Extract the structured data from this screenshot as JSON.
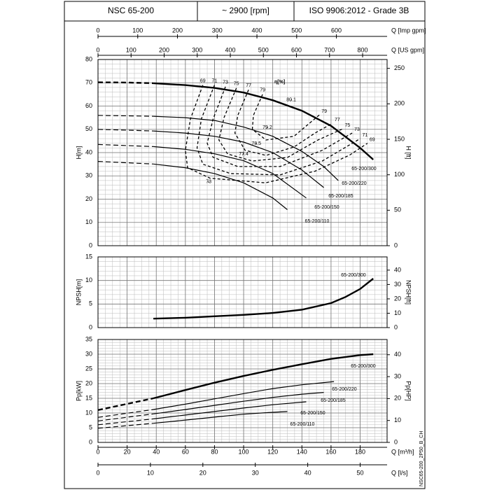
{
  "header": {
    "model": "NSC 65-200",
    "speed": "~ 2900 [rpm]",
    "standard": "ISO 9906:2012 - Grade 3B"
  },
  "footer_code": "NSC65-200_2P50_B_CH",
  "x_axes": {
    "imp_gpm": {
      "label": "Q [Imp gpm]",
      "lim": [
        0,
        727.6
      ],
      "ticks": [
        0,
        100,
        200,
        300,
        400,
        500,
        600
      ]
    },
    "us_gpm": {
      "label": "Q [US gpm]",
      "lim": [
        0,
        874
      ],
      "ticks": [
        0,
        100,
        200,
        300,
        400,
        500,
        600,
        700,
        800
      ]
    },
    "m3h": {
      "label": "Q [m³/h]",
      "lim": [
        0,
        198.5
      ],
      "ticks": [
        0,
        20,
        40,
        60,
        80,
        100,
        120,
        140,
        160,
        180
      ]
    },
    "ls": {
      "label": "Q [l/s]",
      "lim": [
        0,
        55.14
      ],
      "ticks": [
        0,
        10,
        20,
        30,
        40,
        50
      ]
    }
  },
  "chart_data": [
    {
      "type": "line",
      "ylabel": "H[m]",
      "y2label": "H [ft]",
      "xlim": [
        0,
        198.5
      ],
      "ylim": [
        0,
        80
      ],
      "yticks": [
        0,
        10,
        20,
        30,
        40,
        50,
        60,
        70,
        80
      ],
      "y2lim": [
        0,
        262.5
      ],
      "y2ticks": [
        0,
        50,
        100,
        150,
        200,
        250
      ],
      "grid": true,
      "grid_minor": {
        "x": 4,
        "y": 5
      },
      "series": [
        {
          "name": "65-200/300",
          "color": "#000000",
          "line_width": 2.4,
          "dashed_below": 38,
          "x": [
            0,
            20,
            38,
            60,
            80,
            100,
            120,
            140,
            160,
            180,
            189
          ],
          "values": [
            70.2,
            70.1,
            69.8,
            69,
            67.8,
            65.8,
            62.5,
            58,
            51.5,
            42,
            37
          ]
        },
        {
          "name": "65-200/220",
          "color": "#000000",
          "line_width": 1.2,
          "dashed_below": 38,
          "x": [
            0,
            38,
            60,
            80,
            100,
            120,
            140,
            155,
            165
          ],
          "values": [
            56,
            55.6,
            55,
            53.8,
            51,
            47,
            40.5,
            34,
            28
          ]
        },
        {
          "name": "65-200/185",
          "color": "#000000",
          "line_width": 1.2,
          "dashed_below": 38,
          "x": [
            0,
            38,
            60,
            80,
            100,
            120,
            140,
            155
          ],
          "values": [
            50,
            49.3,
            48.4,
            47,
            44.5,
            40,
            32.5,
            25
          ]
        },
        {
          "name": "65-200/150",
          "color": "#000000",
          "line_width": 1.2,
          "dashed_below": 38,
          "x": [
            0,
            38,
            60,
            80,
            100,
            120,
            143
          ],
          "values": [
            43.5,
            42.6,
            41.4,
            39.5,
            36.5,
            31,
            20.5
          ]
        },
        {
          "name": "65-200/110",
          "color": "#000000",
          "line_width": 1.2,
          "dashed_below": 38,
          "x": [
            0,
            38,
            60,
            80,
            100,
            120,
            130
          ],
          "values": [
            36.2,
            35.1,
            33.5,
            31,
            27,
            20.5,
            15.5
          ]
        }
      ],
      "eta_label": "η[%]",
      "efficiency_contours": [
        {
          "efficiency": 69,
          "x": [
            72,
            63.5,
            60,
            61.5,
            77,
            115,
            149,
            173,
            185
          ],
          "values": [
            69,
            54.5,
            41,
            33.5,
            29,
            27,
            32,
            39,
            44
          ]
        },
        {
          "efficiency": 71,
          "x": [
            80,
            71,
            68,
            72,
            91,
            125,
            154,
            180
          ],
          "values": [
            69,
            54.5,
            42,
            35,
            31,
            30.4,
            36.4,
            46
          ]
        },
        {
          "efficiency": 73,
          "x": [
            87.5,
            79,
            75,
            79,
            96,
            125,
            154,
            174.5
          ],
          "values": [
            68.3,
            54.4,
            44,
            38,
            34,
            34,
            41,
            48.4
          ]
        },
        {
          "efficiency": 75,
          "x": [
            95,
            86.5,
            83,
            89,
            106,
            130,
            151,
            168
          ],
          "values": [
            67.7,
            55,
            45.4,
            39.4,
            36.4,
            37.9,
            45.4,
            50.2
          ]
        },
        {
          "efficiency": 77,
          "x": [
            103.4,
            96,
            94,
            101,
            115.4,
            134.6,
            149,
            161
          ],
          "values": [
            67,
            56,
            48.4,
            41,
            38.8,
            42.4,
            48.4,
            52.6
          ]
        },
        {
          "efficiency": 79,
          "x": [
            113,
            106.7,
            106,
            115.4,
            134.6,
            152
          ],
          "values": [
            65,
            56,
            50,
            45.4,
            47,
            56.2
          ]
        }
      ],
      "efficiency_points": {
        "x": [
          132.7,
          116.3,
          108.7,
          100,
          76
        ],
        "values": [
          62.6,
          50.8,
          43.9,
          39.4,
          27.4
        ],
        "labels": [
          80.1,
          79.2,
          78.5,
          77.4,
          73
        ]
      }
    },
    {
      "type": "line",
      "ylabel": "NPSH[m]",
      "y2label": "NPSH[ft]",
      "xlim": [
        0,
        198.5
      ],
      "ylim": [
        0,
        15
      ],
      "yticks": [
        0,
        5,
        10,
        15
      ],
      "y2lim": [
        0,
        49.2
      ],
      "y2ticks": [
        0,
        10,
        20,
        30,
        40
      ],
      "grid": true,
      "grid_minor": {
        "x": 4,
        "y": 5
      },
      "series": [
        {
          "name": "65-200/300",
          "color": "#000000",
          "line_width": 2.4,
          "x": [
            38,
            60,
            80,
            100,
            120,
            140,
            160,
            170,
            180,
            189
          ],
          "values": [
            1.9,
            2.1,
            2.4,
            2.7,
            3.1,
            3.8,
            5.2,
            6.5,
            8.2,
            10.4
          ]
        }
      ]
    },
    {
      "type": "line",
      "ylabel": "Pp[kW]",
      "y2label": "Pp[HP]",
      "xlim": [
        0,
        198.5
      ],
      "ylim": [
        0,
        35
      ],
      "yticks": [
        0,
        5,
        10,
        15,
        20,
        25,
        30,
        35
      ],
      "y2lim": [
        0,
        46.94
      ],
      "y2ticks": [
        0,
        10,
        20,
        30,
        40
      ],
      "grid": true,
      "grid_minor": {
        "x": 4,
        "y": 5
      },
      "series": [
        {
          "name": "65-200/300",
          "color": "#000000",
          "line_width": 2.4,
          "dashed_below": 38,
          "x": [
            0,
            38,
            60,
            80,
            100,
            120,
            140,
            160,
            180,
            189
          ],
          "values": [
            11,
            15,
            17.8,
            20.3,
            22.6,
            24.7,
            26.6,
            28.4,
            29.7,
            30
          ]
        },
        {
          "name": "65-200/220",
          "color": "#000000",
          "line_width": 1.2,
          "dashed_below": 38,
          "x": [
            0,
            38,
            60,
            80,
            100,
            120,
            140,
            162
          ],
          "values": [
            8.5,
            11.2,
            13,
            14.8,
            16.6,
            18.3,
            19.6,
            20.7
          ]
        },
        {
          "name": "65-200/185",
          "color": "#000000",
          "line_width": 1.2,
          "dashed_below": 38,
          "x": [
            0,
            38,
            60,
            80,
            100,
            120,
            140,
            155
          ],
          "values": [
            7.3,
            9.7,
            11.2,
            12.6,
            14,
            15.3,
            16.4,
            17
          ]
        },
        {
          "name": "65-200/150",
          "color": "#000000",
          "line_width": 1.2,
          "dashed_below": 38,
          "x": [
            0,
            38,
            60,
            80,
            100,
            120,
            143
          ],
          "values": [
            6,
            8,
            9.3,
            10.5,
            11.7,
            12.8,
            13.8
          ]
        },
        {
          "name": "65-200/110",
          "color": "#000000",
          "line_width": 1.2,
          "dashed_below": 38,
          "x": [
            0,
            38,
            60,
            80,
            100,
            115,
            130
          ],
          "values": [
            4.8,
            6.5,
            7.6,
            8.6,
            9.6,
            10.1,
            10.5
          ]
        }
      ]
    }
  ]
}
